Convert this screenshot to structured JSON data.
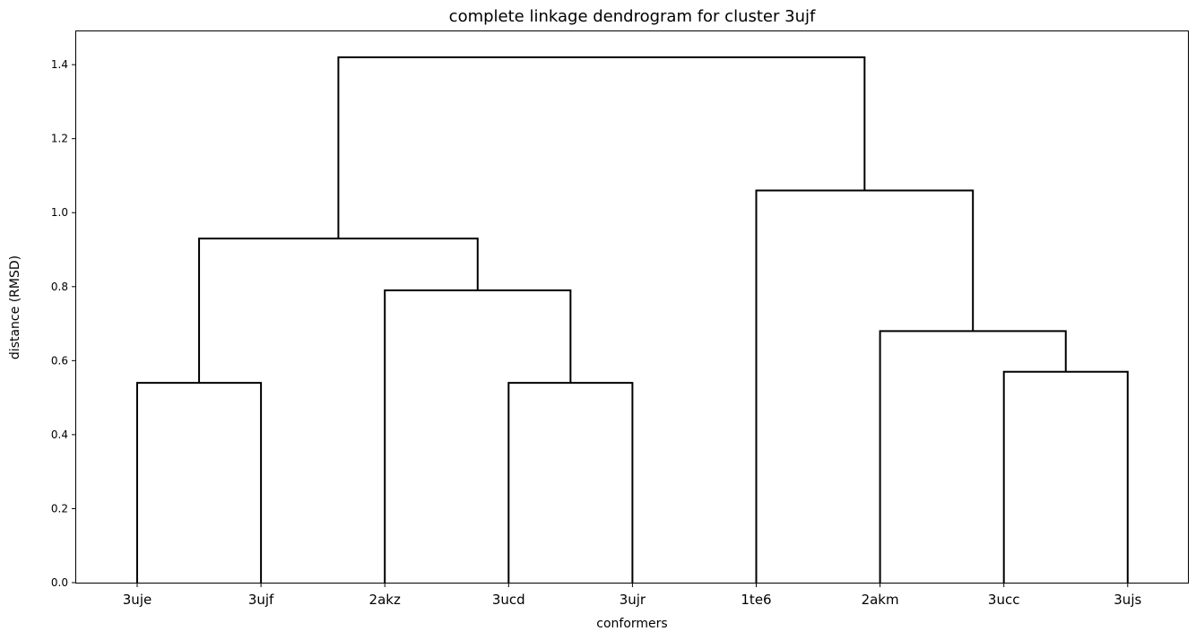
{
  "chart_data": {
    "type": "dendrogram",
    "title": "complete linkage dendrogram for cluster 3ujf",
    "xlabel": "conformers",
    "ylabel": "distance (RMSD)",
    "ylim": [
      0,
      1.49
    ],
    "yticks": [
      0.0,
      0.2,
      0.4,
      0.6,
      0.8,
      1.0,
      1.2,
      1.4
    ],
    "ytick_labels": [
      "0.0",
      "0.2",
      "0.4",
      "0.6",
      "0.8",
      "1.0",
      "1.2",
      "1.4"
    ],
    "leaves": [
      "3uje",
      "3ujf",
      "2akz",
      "3ucd",
      "3ujr",
      "1te6",
      "2akm",
      "3ucc",
      "3ujs"
    ],
    "merges": [
      {
        "left": "3uje",
        "right": "3ujf",
        "height": 0.54,
        "id": "A"
      },
      {
        "left": "3ucd",
        "right": "3ujr",
        "height": 0.54,
        "id": "B"
      },
      {
        "left": "3ucc",
        "right": "3ujs",
        "height": 0.57,
        "id": "C"
      },
      {
        "left": "2akm",
        "right": "C",
        "height": 0.68,
        "id": "D"
      },
      {
        "left": "2akz",
        "right": "B",
        "height": 0.79,
        "id": "E"
      },
      {
        "left": "A",
        "right": "E",
        "height": 0.93,
        "id": "F"
      },
      {
        "left": "1te6",
        "right": "D",
        "height": 1.06,
        "id": "G"
      },
      {
        "left": "F",
        "right": "G",
        "height": 1.42,
        "id": "H"
      }
    ],
    "grid": false,
    "line_color": "#000000"
  }
}
